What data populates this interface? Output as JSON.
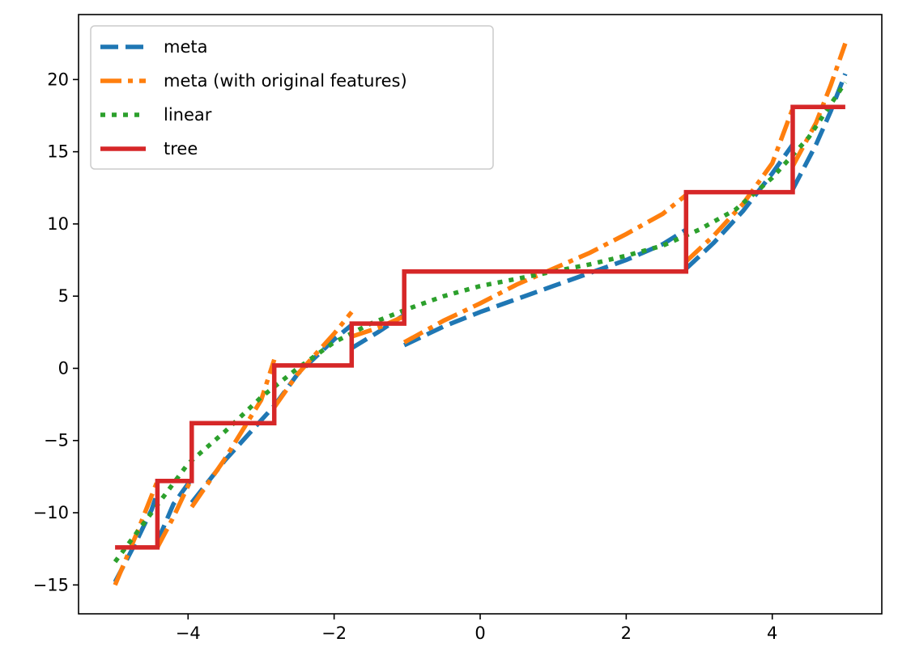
{
  "chart_data": {
    "type": "line",
    "title": "",
    "xlabel": "",
    "ylabel": "",
    "xlim": [
      -5.5,
      5.5
    ],
    "ylim": [
      -17,
      24.5
    ],
    "grid": false,
    "legend_position": "top-left",
    "xticks": [
      -4,
      -2,
      0,
      2,
      4
    ],
    "yticks": [
      -15,
      -10,
      -5,
      0,
      5,
      10,
      15,
      20
    ],
    "series": [
      {
        "name": "meta",
        "color": "#1f77b4",
        "style": "dashed",
        "segments": [
          [
            [
              -5.0,
              -14.8
            ],
            [
              -4.7,
              -11.9
            ],
            [
              -4.5,
              -9.8
            ],
            [
              -4.42,
              -8.6
            ]
          ],
          [
            [
              -4.42,
              -12.0
            ],
            [
              -4.2,
              -9.4
            ],
            [
              -4.0,
              -8.0
            ],
            [
              -3.95,
              -7.6
            ]
          ],
          [
            [
              -3.95,
              -9.3
            ],
            [
              -3.5,
              -6.4
            ],
            [
              -3.0,
              -3.6
            ],
            [
              -2.82,
              -2.6
            ]
          ],
          [
            [
              -2.82,
              -2.6
            ],
            [
              -2.5,
              -0.4
            ],
            [
              -2.0,
              2.0
            ],
            [
              -1.76,
              3.0
            ]
          ],
          [
            [
              -1.76,
              1.4
            ],
            [
              -1.4,
              2.5
            ],
            [
              -1.04,
              3.7
            ]
          ],
          [
            [
              -1.04,
              1.6
            ],
            [
              -0.5,
              2.9
            ],
            [
              0.0,
              3.9
            ],
            [
              0.5,
              4.8
            ],
            [
              1.0,
              5.7
            ],
            [
              1.5,
              6.6
            ],
            [
              2.0,
              7.5
            ],
            [
              2.5,
              8.6
            ],
            [
              2.82,
              9.6
            ]
          ],
          [
            [
              2.82,
              6.9
            ],
            [
              3.2,
              8.7
            ],
            [
              3.6,
              10.9
            ],
            [
              4.0,
              13.5
            ],
            [
              4.28,
              15.5
            ]
          ],
          [
            [
              4.28,
              12.4
            ],
            [
              4.6,
              15.5
            ],
            [
              4.8,
              17.8
            ],
            [
              5.0,
              20.4
            ]
          ]
        ]
      },
      {
        "name": "meta (with original features)",
        "color": "#ff7f0e",
        "style": "dashdot",
        "segments": [
          [
            [
              -5.0,
              -15.0
            ],
            [
              -4.7,
              -11.4
            ],
            [
              -4.42,
              -7.8
            ]
          ],
          [
            [
              -4.42,
              -12.4
            ],
            [
              -4.2,
              -10.3
            ],
            [
              -3.95,
              -7.6
            ]
          ],
          [
            [
              -3.95,
              -9.6
            ],
            [
              -3.5,
              -6.3
            ],
            [
              -3.0,
              -2.2
            ],
            [
              -2.82,
              0.6
            ]
          ],
          [
            [
              -2.82,
              -2.7
            ],
            [
              -2.5,
              -0.4
            ],
            [
              -2.0,
              2.4
            ],
            [
              -1.76,
              3.9
            ]
          ],
          [
            [
              -1.76,
              2.2
            ],
            [
              -1.4,
              2.8
            ],
            [
              -1.04,
              3.6
            ]
          ],
          [
            [
              -1.04,
              1.8
            ],
            [
              -0.5,
              3.3
            ],
            [
              0.0,
              4.5
            ],
            [
              0.5,
              5.8
            ],
            [
              1.0,
              6.9
            ],
            [
              1.5,
              8.0
            ],
            [
              2.0,
              9.3
            ],
            [
              2.5,
              10.7
            ],
            [
              2.82,
              12.0
            ]
          ],
          [
            [
              2.82,
              7.4
            ],
            [
              3.2,
              9.2
            ],
            [
              3.6,
              11.4
            ],
            [
              4.0,
              14.2
            ],
            [
              4.28,
              18.0
            ]
          ],
          [
            [
              4.28,
              14.0
            ],
            [
              4.6,
              17.0
            ],
            [
              4.8,
              19.6
            ],
            [
              5.0,
              22.5
            ]
          ]
        ]
      },
      {
        "name": "linear",
        "color": "#2ca02c",
        "style": "dotted",
        "segments": [
          [
            [
              -5.0,
              -13.4
            ],
            [
              -4.5,
              -10.0
            ],
            [
              -4.0,
              -6.6
            ],
            [
              -3.5,
              -4.4
            ],
            [
              -3.0,
              -2.0
            ],
            [
              -2.5,
              0.0
            ],
            [
              -2.0,
              1.8
            ],
            [
              -1.5,
              3.1
            ],
            [
              -1.0,
              4.1
            ],
            [
              -0.5,
              5.0
            ],
            [
              0.0,
              5.7
            ],
            [
              0.5,
              6.2
            ],
            [
              1.0,
              6.7
            ],
            [
              1.5,
              7.2
            ],
            [
              2.0,
              7.8
            ],
            [
              2.5,
              8.5
            ],
            [
              3.0,
              9.6
            ],
            [
              3.5,
              11.0
            ],
            [
              4.0,
              13.2
            ],
            [
              4.5,
              16.0
            ],
            [
              5.0,
              19.8
            ]
          ]
        ]
      },
      {
        "name": "tree",
        "color": "#d62728",
        "style": "solid",
        "segments": [
          [
            [
              -5.0,
              -12.4
            ],
            [
              -4.42,
              -12.4
            ],
            [
              -4.42,
              -7.8
            ],
            [
              -3.95,
              -7.8
            ],
            [
              -3.95,
              -3.8
            ],
            [
              -2.82,
              -3.8
            ],
            [
              -2.82,
              0.2
            ],
            [
              -1.76,
              0.2
            ],
            [
              -1.76,
              3.1
            ],
            [
              -1.04,
              3.1
            ],
            [
              -1.04,
              6.7
            ],
            [
              2.82,
              6.7
            ],
            [
              2.82,
              12.2
            ],
            [
              4.28,
              12.2
            ],
            [
              4.28,
              18.1
            ],
            [
              5.0,
              18.1
            ]
          ]
        ]
      }
    ]
  }
}
